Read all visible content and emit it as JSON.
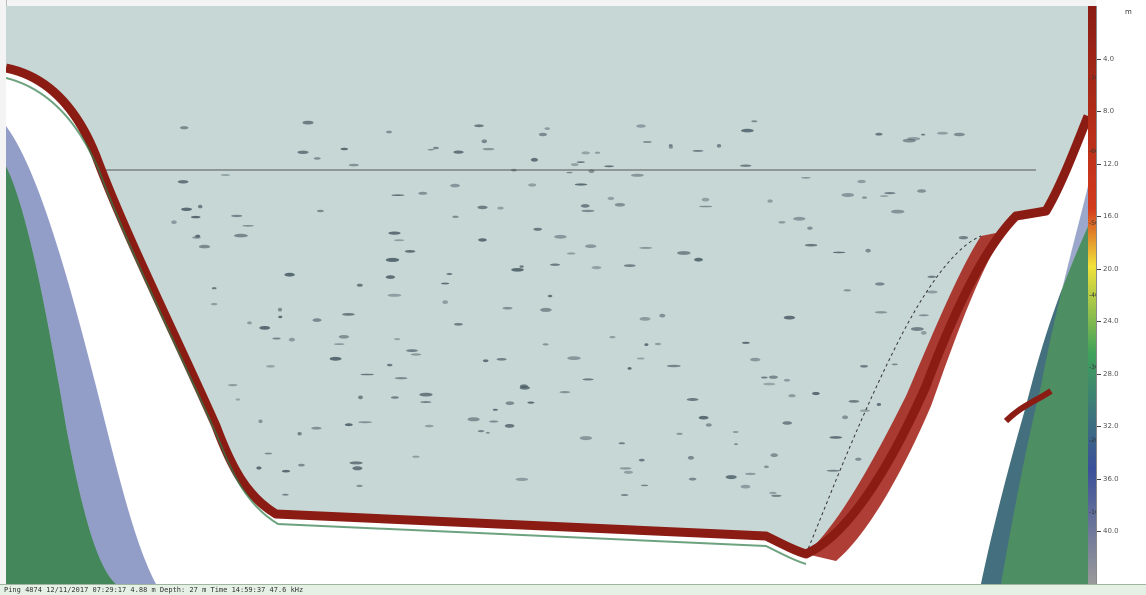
{
  "window": {
    "status_text": "Ping 4874  12/11/2017 07:29:17  4.88 m   Depth: 27 m  Time 14:59:37  47.6 kHz"
  },
  "colors": {
    "water": "#c7d7d6",
    "bottom_strong": "#8a1c14",
    "bottom_mid": "#b9403a",
    "bank_green": "#2f7a48",
    "bank_blue": "#3a4f9a",
    "fish_target": "#4b5d66",
    "surface_line": "#555555"
  },
  "color_scale": {
    "labels": [
      "-70",
      "-60",
      "-50",
      "-40",
      "-30",
      "-20",
      "-10"
    ]
  },
  "depth_scale": {
    "unit": "m",
    "ticks": [
      "4.0",
      "8.0",
      "12.0",
      "16.0",
      "20.0",
      "24.0",
      "28.0",
      "32.0",
      "36.0",
      "40.0"
    ]
  },
  "icons": {
    "color_bar": "gradient-bar",
    "depth_axis": "ruler-ticks"
  }
}
